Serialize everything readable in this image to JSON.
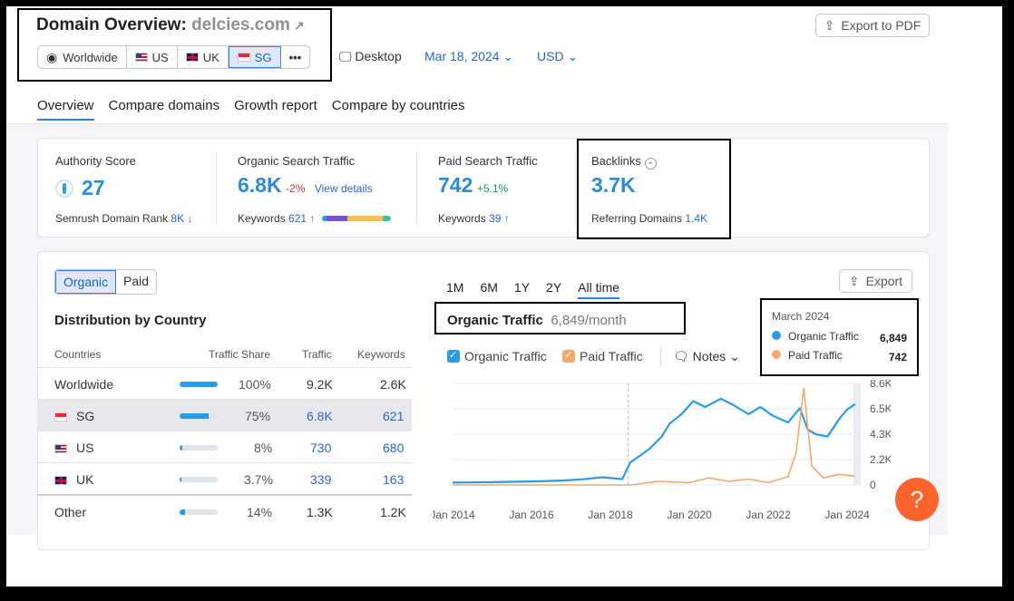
{
  "header": {
    "title": "Domain Overview:",
    "domain": "delcies.com",
    "regions": [
      {
        "label": "Worldwide",
        "flag": "globe"
      },
      {
        "label": "US",
        "flag": "us"
      },
      {
        "label": "UK",
        "flag": "uk"
      },
      {
        "label": "SG",
        "flag": "sg",
        "active": true
      }
    ],
    "more_label": "•••",
    "device": "Desktop",
    "date": "Mar 18, 2024",
    "currency": "USD",
    "export_pdf": "Export to PDF"
  },
  "tabs": [
    "Overview",
    "Compare domains",
    "Growth report",
    "Compare by countries"
  ],
  "metrics": {
    "authority": {
      "label": "Authority Score",
      "value": "27",
      "sub_label": "Semrush Domain Rank",
      "sub_value": "8K"
    },
    "organic": {
      "label": "Organic Search Traffic",
      "value": "6.8K",
      "change": "-2%",
      "link": "View details",
      "sub_label": "Keywords",
      "sub_value": "621"
    },
    "paid": {
      "label": "Paid Search Traffic",
      "value": "742",
      "change": "+5.1%",
      "sub_label": "Keywords",
      "sub_value": "39"
    },
    "backlinks": {
      "label": "Backlinks",
      "value": "3.7K",
      "sub_label": "Referring Domains",
      "sub_value": "1.4K"
    }
  },
  "distribution": {
    "toggle": [
      "Organic",
      "Paid"
    ],
    "title": "Distribution by Country",
    "headers": [
      "Countries",
      "Traffic Share",
      "Traffic",
      "Keywords"
    ],
    "rows": [
      {
        "country": "Worldwide",
        "share": "100%",
        "share_frac": 1.0,
        "traffic": "9.2K",
        "keywords": "2.6K",
        "link": false,
        "flag": ""
      },
      {
        "country": "SG",
        "share": "75%",
        "share_frac": 0.75,
        "traffic": "6.8K",
        "keywords": "621",
        "link": true,
        "flag": "sg",
        "highlight": true
      },
      {
        "country": "US",
        "share": "8%",
        "share_frac": 0.08,
        "traffic": "730",
        "keywords": "680",
        "link": true,
        "flag": "us"
      },
      {
        "country": "UK",
        "share": "3.7%",
        "share_frac": 0.037,
        "traffic": "339",
        "keywords": "163",
        "link": true,
        "flag": "uk"
      },
      {
        "country": "Other",
        "share": "14%",
        "share_frac": 0.14,
        "traffic": "1.3K",
        "keywords": "1.2K",
        "link": false,
        "flag": ""
      }
    ]
  },
  "chart_panel": {
    "ranges": [
      "1M",
      "6M",
      "1Y",
      "2Y",
      "All time"
    ],
    "active_range": "All time",
    "export": "Export",
    "heading": "Organic Traffic",
    "heading_value": "6,849/month",
    "legend_organic": "Organic Traffic",
    "legend_paid": "Paid Traffic",
    "notes": "Notes",
    "tooltip": {
      "date": "March 2024",
      "organic_label": "Organic Traffic",
      "organic_value": "6,849",
      "paid_label": "Paid Traffic",
      "paid_value": "742"
    }
  },
  "chart_data": {
    "type": "line",
    "x_ticks": [
      "Jan 2014",
      "Jan 2016",
      "Jan 2018",
      "Jan 2020",
      "Jan 2022",
      "Jan 2024"
    ],
    "y_ticks": [
      "8.6K",
      "6.5K",
      "4.3K",
      "2.2K",
      "0"
    ],
    "ylim": [
      0,
      8600
    ],
    "xlim": [
      2014.0,
      2024.25
    ],
    "colors": {
      "organic": "#2a9be8",
      "paid": "#f5a76c"
    },
    "series": [
      {
        "name": "Organic Traffic",
        "points": [
          [
            2014.0,
            200
          ],
          [
            2015.0,
            240
          ],
          [
            2016.0,
            300
          ],
          [
            2016.8,
            380
          ],
          [
            2017.3,
            480
          ],
          [
            2017.8,
            650
          ],
          [
            2018.3,
            500
          ],
          [
            2018.5,
            1900
          ],
          [
            2018.8,
            2600
          ],
          [
            2019.0,
            3100
          ],
          [
            2019.3,
            4100
          ],
          [
            2019.5,
            5200
          ],
          [
            2019.8,
            6000
          ],
          [
            2020.1,
            7100
          ],
          [
            2020.4,
            6600
          ],
          [
            2020.8,
            7300
          ],
          [
            2021.1,
            6800
          ],
          [
            2021.5,
            6000
          ],
          [
            2021.8,
            6600
          ],
          [
            2022.1,
            5900
          ],
          [
            2022.5,
            5300
          ],
          [
            2022.8,
            6500
          ],
          [
            2023.0,
            4700
          ],
          [
            2023.2,
            4300
          ],
          [
            2023.5,
            4100
          ],
          [
            2023.8,
            5600
          ],
          [
            2024.0,
            6400
          ],
          [
            2024.2,
            6849
          ]
        ]
      },
      {
        "name": "Paid Traffic",
        "points": [
          [
            2014.0,
            0
          ],
          [
            2018.5,
            0
          ],
          [
            2019.2,
            300
          ],
          [
            2020.0,
            200
          ],
          [
            2020.5,
            600
          ],
          [
            2021.0,
            300
          ],
          [
            2021.5,
            500
          ],
          [
            2022.0,
            200
          ],
          [
            2022.5,
            700
          ],
          [
            2022.7,
            2700
          ],
          [
            2022.9,
            8200
          ],
          [
            2023.1,
            1600
          ],
          [
            2023.4,
            600
          ],
          [
            2023.8,
            900
          ],
          [
            2024.2,
            742
          ]
        ]
      }
    ]
  },
  "help": "?"
}
